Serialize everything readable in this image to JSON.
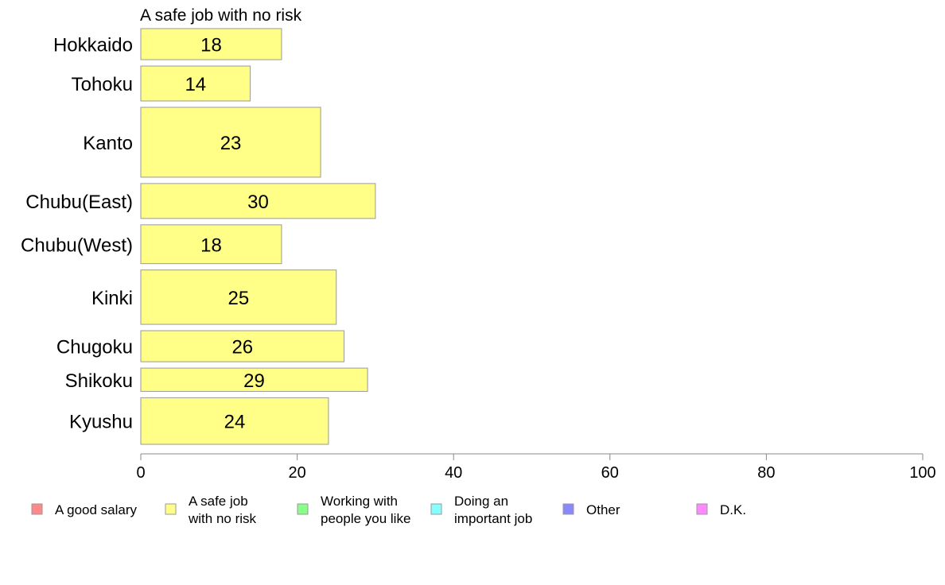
{
  "chart_data": {
    "type": "bar",
    "orientation": "horizontal",
    "title": "A safe job with no risk",
    "categories": [
      "Hokkaido",
      "Tohoku",
      "Kanto",
      "Chubu(East)",
      "Chubu(West)",
      "Kinki",
      "Chugoku",
      "Shikoku",
      "Kyushu"
    ],
    "series": [
      {
        "name": "A safe job with no risk",
        "color": "#ffff88",
        "values": [
          18,
          14,
          23,
          30,
          18,
          25,
          26,
          29,
          24
        ]
      }
    ],
    "category_weights": [
      0.8,
      0.9,
      1.8,
      0.9,
      1.0,
      1.4,
      0.8,
      0.6,
      1.2
    ],
    "xlim": [
      0,
      100
    ],
    "xticks": [
      0,
      20,
      40,
      60,
      80,
      100
    ],
    "grid": false,
    "legend_position": "bottom",
    "legend": [
      {
        "label": [
          "A good salary"
        ],
        "color": "#ff8888"
      },
      {
        "label": [
          "A safe job",
          "with no risk"
        ],
        "color": "#ffff88"
      },
      {
        "label": [
          "Working with",
          "people you like"
        ],
        "color": "#88ff88"
      },
      {
        "label": [
          "Doing an",
          "important job"
        ],
        "color": "#88ffff"
      },
      {
        "label": [
          "Other"
        ],
        "color": "#8888ff"
      },
      {
        "label": [
          "D.K."
        ],
        "color": "#ff88ff"
      }
    ]
  }
}
